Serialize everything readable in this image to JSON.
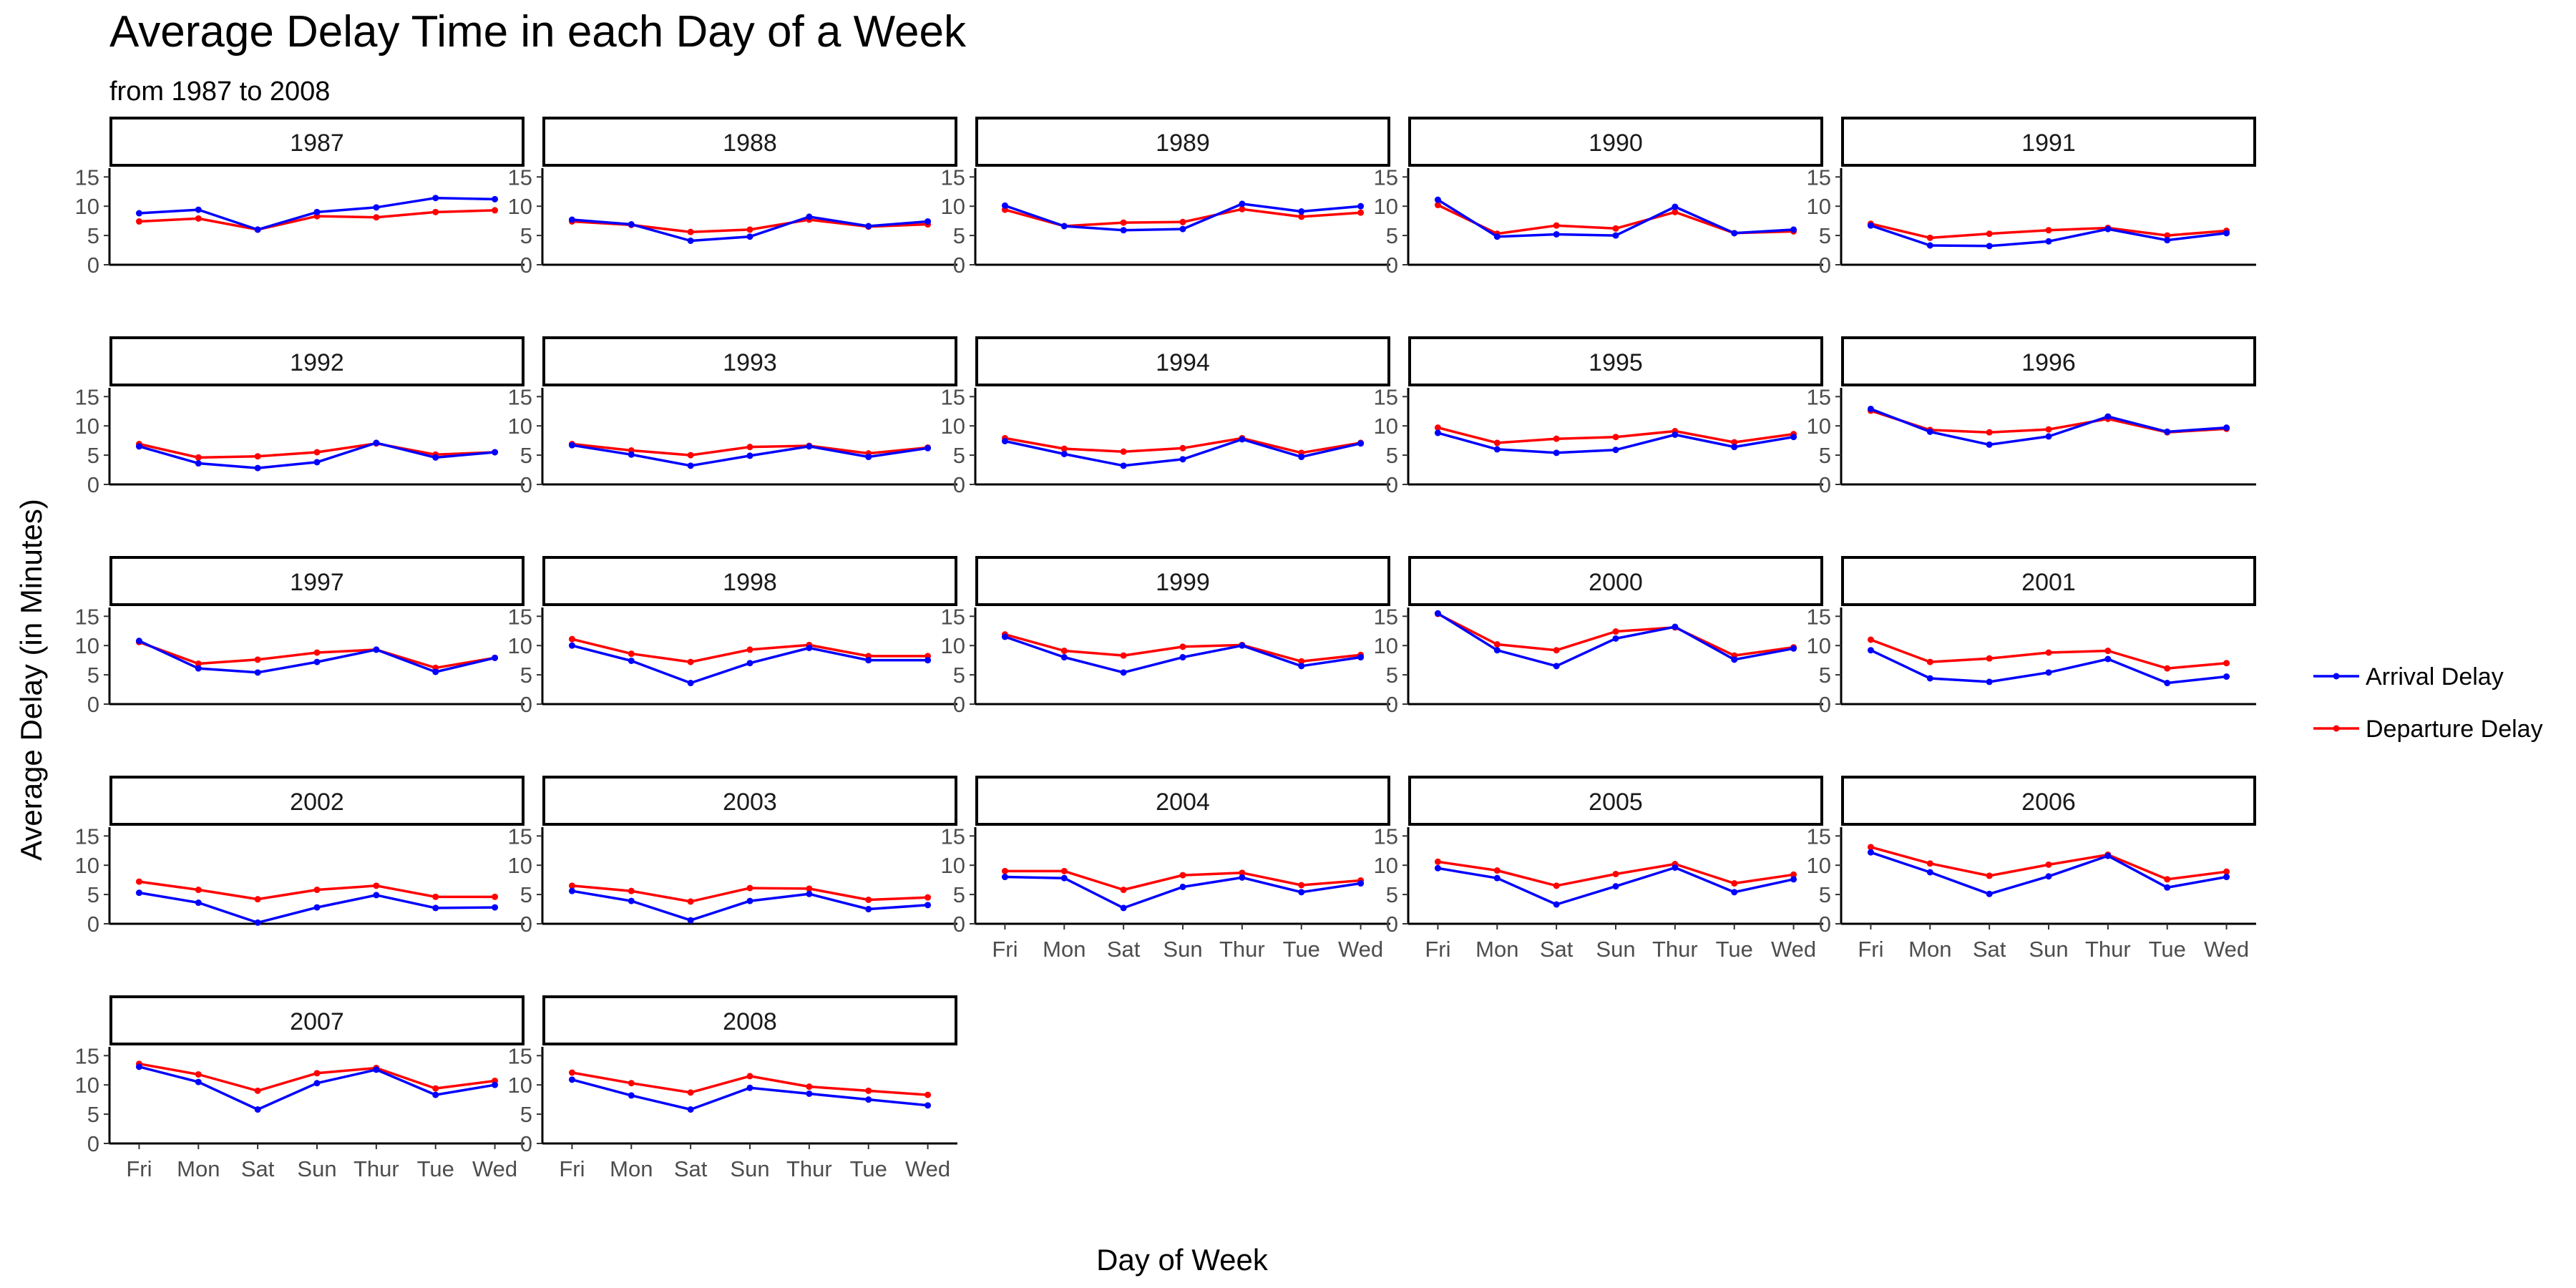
{
  "chart_data": {
    "type": "line",
    "title": "Average Delay Time in each Day of a Week",
    "subtitle": "from 1987 to 2008",
    "xlabel": "Day of Week",
    "ylabel": "Average Delay (in Minutes)",
    "categories": [
      "Fri",
      "Mon",
      "Sat",
      "Sun",
      "Thur",
      "Tue",
      "Wed"
    ],
    "ylim": [
      0,
      16.5
    ],
    "yticks": [
      0,
      5,
      10,
      15
    ],
    "grid": false,
    "legend_position": "right",
    "series_meta": [
      {
        "name": "Arrival Delay",
        "key": "arr",
        "color": "#0000ff"
      },
      {
        "name": "Departure Delay",
        "key": "dep",
        "color": "#ff0000"
      }
    ],
    "facets": [
      {
        "year": "1987",
        "arr": [
          8.8,
          9.4,
          6.0,
          9.0,
          9.8,
          11.4,
          11.2
        ],
        "dep": [
          7.4,
          7.9,
          6.0,
          8.3,
          8.1,
          9.0,
          9.3
        ]
      },
      {
        "year": "1988",
        "arr": [
          7.7,
          6.9,
          4.1,
          4.8,
          8.2,
          6.6,
          7.4
        ],
        "dep": [
          7.4,
          6.8,
          5.6,
          6.0,
          7.7,
          6.5,
          6.9
        ]
      },
      {
        "year": "1989",
        "arr": [
          10.1,
          6.6,
          5.9,
          6.1,
          10.4,
          9.1,
          10.0
        ],
        "dep": [
          9.4,
          6.6,
          7.2,
          7.3,
          9.5,
          8.2,
          8.9
        ]
      },
      {
        "year": "1990",
        "arr": [
          11.1,
          4.8,
          5.2,
          5.0,
          9.9,
          5.4,
          6.0
        ],
        "dep": [
          10.2,
          5.3,
          6.7,
          6.2,
          9.0,
          5.4,
          5.7
        ]
      },
      {
        "year": "1991",
        "arr": [
          6.7,
          3.3,
          3.2,
          4.0,
          6.1,
          4.2,
          5.4
        ],
        "dep": [
          7.0,
          4.6,
          5.3,
          5.9,
          6.3,
          5.0,
          5.8
        ]
      },
      {
        "year": "1992",
        "arr": [
          6.5,
          3.6,
          2.8,
          3.8,
          7.1,
          4.6,
          5.5
        ],
        "dep": [
          6.9,
          4.6,
          4.8,
          5.5,
          7.0,
          5.1,
          5.5
        ]
      },
      {
        "year": "1993",
        "arr": [
          6.7,
          5.1,
          3.2,
          4.9,
          6.5,
          4.7,
          6.2
        ],
        "dep": [
          6.9,
          5.8,
          5.0,
          6.4,
          6.6,
          5.3,
          6.3
        ]
      },
      {
        "year": "1994",
        "arr": [
          7.4,
          5.2,
          3.2,
          4.3,
          7.7,
          4.7,
          7.0
        ],
        "dep": [
          7.9,
          6.1,
          5.6,
          6.2,
          7.9,
          5.4,
          7.1
        ]
      },
      {
        "year": "1995",
        "arr": [
          8.8,
          6.0,
          5.4,
          5.9,
          8.5,
          6.4,
          8.1
        ],
        "dep": [
          9.7,
          7.1,
          7.8,
          8.1,
          9.1,
          7.2,
          8.6
        ]
      },
      {
        "year": "1996",
        "arr": [
          12.9,
          9.0,
          6.8,
          8.2,
          11.6,
          9.0,
          9.7
        ],
        "dep": [
          12.6,
          9.3,
          8.9,
          9.4,
          11.2,
          8.9,
          9.5
        ]
      },
      {
        "year": "1997",
        "arr": [
          10.8,
          6.1,
          5.4,
          7.2,
          9.3,
          5.5,
          7.9
        ],
        "dep": [
          10.6,
          6.9,
          7.6,
          8.8,
          9.3,
          6.2,
          7.9
        ]
      },
      {
        "year": "1998",
        "arr": [
          10.0,
          7.4,
          3.6,
          7.0,
          9.6,
          7.5,
          7.5
        ],
        "dep": [
          11.1,
          8.6,
          7.2,
          9.3,
          10.1,
          8.2,
          8.2
        ]
      },
      {
        "year": "1999",
        "arr": [
          11.5,
          8.0,
          5.4,
          8.0,
          10.0,
          6.5,
          8.0
        ],
        "dep": [
          11.9,
          9.1,
          8.3,
          9.8,
          10.1,
          7.3,
          8.4
        ]
      },
      {
        "year": "2000",
        "arr": [
          15.5,
          9.2,
          6.5,
          11.2,
          13.2,
          7.6,
          9.5
        ],
        "dep": [
          15.4,
          10.2,
          9.2,
          12.4,
          13.1,
          8.3,
          9.7
        ]
      },
      {
        "year": "2001",
        "arr": [
          9.2,
          4.4,
          3.8,
          5.4,
          7.7,
          3.6,
          4.7
        ],
        "dep": [
          11.0,
          7.2,
          7.8,
          8.8,
          9.1,
          6.1,
          7.0
        ]
      },
      {
        "year": "2002",
        "arr": [
          5.3,
          3.6,
          0.2,
          2.8,
          4.9,
          2.7,
          2.8
        ],
        "dep": [
          7.2,
          5.8,
          4.2,
          5.8,
          6.5,
          4.6,
          4.6
        ]
      },
      {
        "year": "2003",
        "arr": [
          5.6,
          3.9,
          0.6,
          3.9,
          5.1,
          2.5,
          3.2
        ],
        "dep": [
          6.5,
          5.6,
          3.8,
          6.1,
          6.0,
          4.1,
          4.5
        ]
      },
      {
        "year": "2004",
        "arr": [
          8.0,
          7.8,
          2.7,
          6.3,
          7.9,
          5.4,
          6.9
        ],
        "dep": [
          9.0,
          9.0,
          5.8,
          8.3,
          8.7,
          6.6,
          7.4
        ]
      },
      {
        "year": "2005",
        "arr": [
          9.5,
          7.8,
          3.3,
          6.4,
          9.6,
          5.4,
          7.6
        ],
        "dep": [
          10.6,
          9.1,
          6.5,
          8.5,
          10.2,
          6.9,
          8.4
        ]
      },
      {
        "year": "2006",
        "arr": [
          12.2,
          8.8,
          5.1,
          8.1,
          11.6,
          6.2,
          8.0
        ],
        "dep": [
          13.1,
          10.3,
          8.2,
          10.1,
          11.8,
          7.6,
          8.9
        ]
      },
      {
        "year": "2007",
        "arr": [
          13.1,
          10.5,
          5.8,
          10.3,
          12.6,
          8.3,
          10.0
        ],
        "dep": [
          13.6,
          11.8,
          9.0,
          12.0,
          12.9,
          9.4,
          10.7
        ]
      },
      {
        "year": "2008",
        "arr": [
          10.9,
          8.2,
          5.8,
          9.5,
          8.5,
          7.5,
          6.5
        ],
        "dep": [
          12.1,
          10.3,
          8.7,
          11.5,
          9.7,
          9.0,
          8.3
        ]
      }
    ]
  }
}
